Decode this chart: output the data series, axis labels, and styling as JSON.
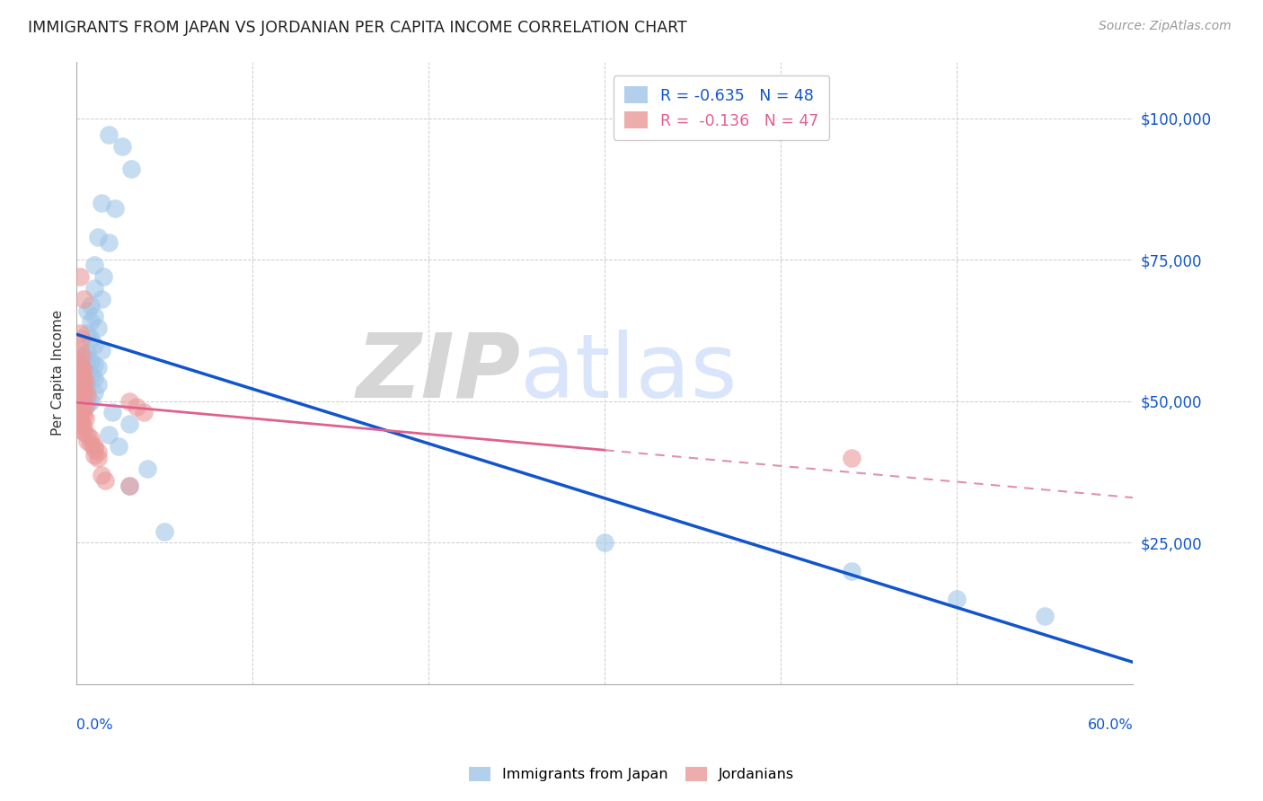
{
  "title": "IMMIGRANTS FROM JAPAN VS JORDANIAN PER CAPITA INCOME CORRELATION CHART",
  "source": "Source: ZipAtlas.com",
  "ylabel": "Per Capita Income",
  "ytick_values": [
    25000,
    50000,
    75000,
    100000
  ],
  "ytick_labels": [
    "$25,000",
    "$50,000",
    "$75,000",
    "$100,000"
  ],
  "watermark_zip": "ZIP",
  "watermark_atlas": "atlas",
  "blue_color": "#9fc5e8",
  "pink_color": "#ea9999",
  "blue_line_color": "#1155cc",
  "pink_line_color": "#e06090",
  "pink_dash_color": "#e090b0",
  "legend_blue_label": "R = -0.635   N = 48",
  "legend_pink_label": "R =  -0.136   N = 47",
  "legend_blue_series": "Immigrants from Japan",
  "legend_pink_series": "Jordanians",
  "xmin": 0.0,
  "xmax": 0.6,
  "ymin": 0,
  "ymax": 110000,
  "blue_x": [
    0.018,
    0.026,
    0.031,
    0.014,
    0.022,
    0.012,
    0.018,
    0.01,
    0.015,
    0.01,
    0.014,
    0.008,
    0.006,
    0.01,
    0.008,
    0.012,
    0.006,
    0.008,
    0.01,
    0.014,
    0.006,
    0.004,
    0.006,
    0.008,
    0.01,
    0.012,
    0.004,
    0.006,
    0.008,
    0.01,
    0.004,
    0.012,
    0.006,
    0.01,
    0.004,
    0.008,
    0.006,
    0.02,
    0.03,
    0.018,
    0.024,
    0.04,
    0.03,
    0.05,
    0.3,
    0.44,
    0.5,
    0.55
  ],
  "blue_y": [
    97000,
    95000,
    91000,
    85000,
    84000,
    79000,
    78000,
    74000,
    72000,
    70000,
    68000,
    67000,
    66000,
    65000,
    64000,
    63000,
    62000,
    61000,
    60000,
    59000,
    58500,
    58000,
    57500,
    57000,
    56500,
    56000,
    55500,
    55000,
    54500,
    54000,
    53500,
    53000,
    52000,
    51500,
    50500,
    50000,
    49500,
    48000,
    46000,
    44000,
    42000,
    38000,
    35000,
    27000,
    25000,
    20000,
    15000,
    12000
  ],
  "pink_x": [
    0.002,
    0.004,
    0.002,
    0.003,
    0.002,
    0.003,
    0.002,
    0.003,
    0.004,
    0.002,
    0.003,
    0.004,
    0.005,
    0.002,
    0.003,
    0.004,
    0.005,
    0.006,
    0.002,
    0.003,
    0.004,
    0.005,
    0.002,
    0.003,
    0.004,
    0.005,
    0.002,
    0.003,
    0.004,
    0.002,
    0.004,
    0.006,
    0.008,
    0.006,
    0.008,
    0.01,
    0.01,
    0.012,
    0.01,
    0.012,
    0.014,
    0.016,
    0.03,
    0.03,
    0.034,
    0.038,
    0.44
  ],
  "pink_y": [
    72000,
    68000,
    62000,
    61000,
    59000,
    58000,
    57000,
    56000,
    55500,
    55000,
    54500,
    54000,
    53500,
    53000,
    52500,
    52000,
    51500,
    51000,
    50500,
    50000,
    49500,
    49000,
    48500,
    48000,
    47500,
    47000,
    46500,
    46000,
    45500,
    45000,
    44500,
    44000,
    43500,
    43000,
    42500,
    42000,
    41500,
    41000,
    40500,
    40000,
    37000,
    36000,
    35000,
    50000,
    49000,
    48000,
    40000
  ]
}
